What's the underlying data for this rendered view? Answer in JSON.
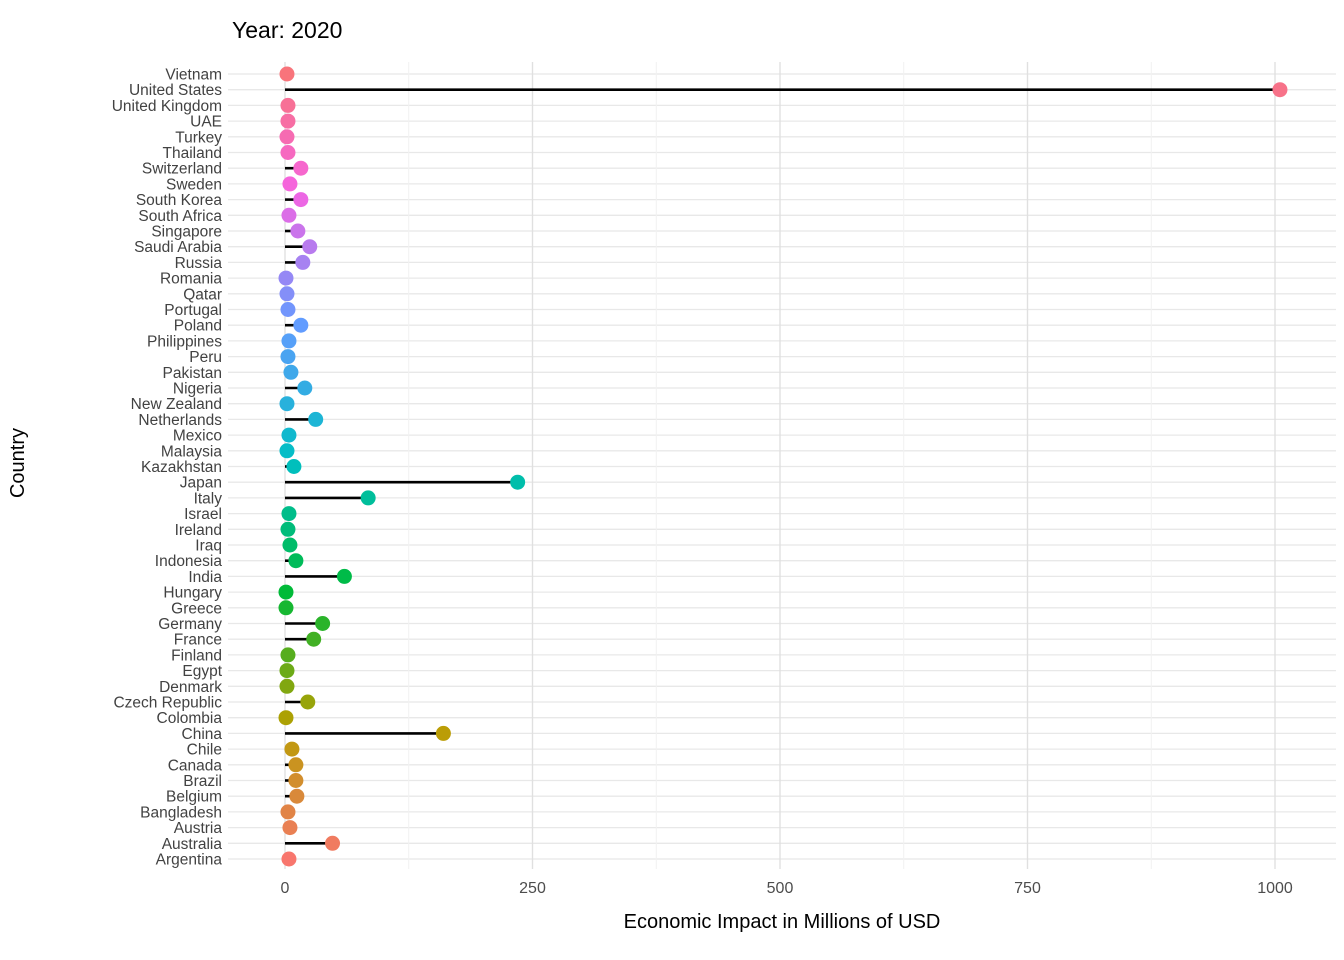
{
  "title": "Year: 2020",
  "chart_data": {
    "type": "scatter",
    "style": "lollipop",
    "orientation": "horizontal",
    "title": "Year: 2020",
    "xlabel": "Economic Impact in Millions of USD",
    "ylabel": "Country",
    "xlim": [
      -57,
      1062
    ],
    "x_ticks": [
      0,
      250,
      500,
      750,
      1000
    ],
    "x_minor_gridlines": [
      125,
      375,
      625,
      875
    ],
    "grid": true,
    "legend": "none",
    "rows": [
      {
        "country": "Vietnam",
        "value": 2,
        "color": "#F8747B"
      },
      {
        "country": "United States",
        "value": 1005,
        "color": "#F77289"
      },
      {
        "country": "United Kingdom",
        "value": 3,
        "color": "#F77096"
      },
      {
        "country": "UAE",
        "value": 3,
        "color": "#F76EA4"
      },
      {
        "country": "Turkey",
        "value": 2,
        "color": "#F66BB2"
      },
      {
        "country": "Thailand",
        "value": 3,
        "color": "#F669C0"
      },
      {
        "country": "Switzerland",
        "value": 16,
        "color": "#F667CD"
      },
      {
        "country": "Sweden",
        "value": 5,
        "color": "#F565DB"
      },
      {
        "country": "South Korea",
        "value": 16,
        "color": "#EC67E4"
      },
      {
        "country": "South Africa",
        "value": 4,
        "color": "#DB6EE7"
      },
      {
        "country": "Singapore",
        "value": 13,
        "color": "#CA74EB"
      },
      {
        "country": "Saudi Arabia",
        "value": 25,
        "color": "#B87BEE"
      },
      {
        "country": "Russia",
        "value": 18,
        "color": "#A782F1"
      },
      {
        "country": "Romania",
        "value": 1,
        "color": "#9588F5"
      },
      {
        "country": "Qatar",
        "value": 2,
        "color": "#848FF8"
      },
      {
        "country": "Portugal",
        "value": 3,
        "color": "#7295FC"
      },
      {
        "country": "Poland",
        "value": 16,
        "color": "#619CFF"
      },
      {
        "country": "Philippines",
        "value": 4,
        "color": "#56A0F8"
      },
      {
        "country": "Peru",
        "value": 3,
        "color": "#4AA4F1"
      },
      {
        "country": "Pakistan",
        "value": 6,
        "color": "#3FA8EA"
      },
      {
        "country": "Nigeria",
        "value": 20,
        "color": "#33ACE3"
      },
      {
        "country": "New Zealand",
        "value": 2,
        "color": "#28B1DC"
      },
      {
        "country": "Netherlands",
        "value": 31,
        "color": "#1DB5D5"
      },
      {
        "country": "Mexico",
        "value": 4,
        "color": "#11B9CE"
      },
      {
        "country": "Malaysia",
        "value": 2,
        "color": "#06BDC7"
      },
      {
        "country": "Kazakhstan",
        "value": 9,
        "color": "#00BFBC"
      },
      {
        "country": "Japan",
        "value": 235,
        "color": "#00BEAB"
      },
      {
        "country": "Italy",
        "value": 84,
        "color": "#00BE9B"
      },
      {
        "country": "Israel",
        "value": 4,
        "color": "#00BD8A"
      },
      {
        "country": "Ireland",
        "value": 3,
        "color": "#00BC7A"
      },
      {
        "country": "Iraq",
        "value": 5,
        "color": "#00BC69"
      },
      {
        "country": "Indonesia",
        "value": 11,
        "color": "#00BB59"
      },
      {
        "country": "India",
        "value": 60,
        "color": "#00BB48"
      },
      {
        "country": "Hungary",
        "value": 1,
        "color": "#00BA38"
      },
      {
        "country": "Greece",
        "value": 1,
        "color": "#16B731"
      },
      {
        "country": "Germany",
        "value": 38,
        "color": "#2BB42B"
      },
      {
        "country": "France",
        "value": 29,
        "color": "#41B024"
      },
      {
        "country": "Finland",
        "value": 3,
        "color": "#56AD1E"
      },
      {
        "country": "Egypt",
        "value": 2,
        "color": "#6CAA17"
      },
      {
        "country": "Denmark",
        "value": 2,
        "color": "#81A710"
      },
      {
        "country": "Czech Republic",
        "value": 23,
        "color": "#97A40A"
      },
      {
        "country": "Colombia",
        "value": 1,
        "color": "#ACA103"
      },
      {
        "country": "China",
        "value": 160,
        "color": "#BB9D06"
      },
      {
        "country": "Chile",
        "value": 7,
        "color": "#C29813"
      },
      {
        "country": "Canada",
        "value": 11,
        "color": "#CA9320"
      },
      {
        "country": "Brazil",
        "value": 11,
        "color": "#D28E2D"
      },
      {
        "country": "Belgium",
        "value": 12,
        "color": "#D9893A"
      },
      {
        "country": "Bangladesh",
        "value": 3,
        "color": "#E18446"
      },
      {
        "country": "Austria",
        "value": 5,
        "color": "#E98053"
      },
      {
        "country": "Australia",
        "value": 48,
        "color": "#F07B60"
      },
      {
        "country": "Argentina",
        "value": 4,
        "color": "#F8766D"
      }
    ]
  },
  "colors": {
    "background": "#FFFFFF",
    "stem": "#000000",
    "grid_row": "#E8E8E8",
    "grid_major": "#E0E0E0",
    "grid_minor": "#F1F1F1",
    "tick_text": "#4D4D4D",
    "category_text": "#424242",
    "title_text": "#000000"
  }
}
